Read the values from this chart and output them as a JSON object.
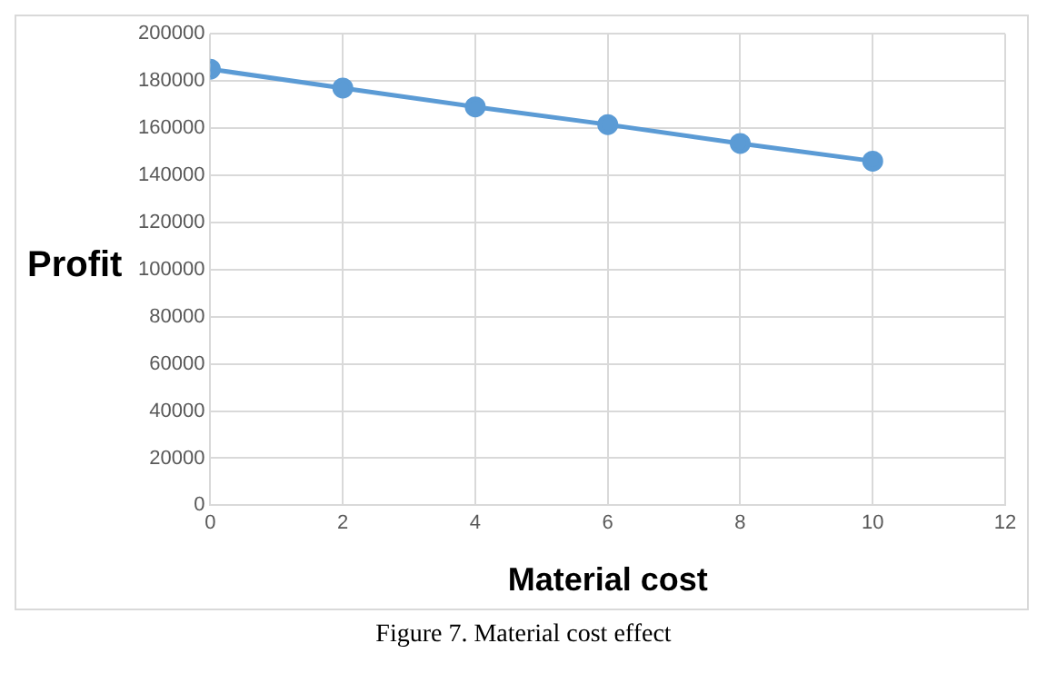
{
  "chart_data": {
    "type": "line",
    "xlabel": "Material cost",
    "ylabel": "Profit",
    "annotations": [
      "Figure 7. Material cost effect"
    ],
    "x": [
      0,
      2,
      4,
      6,
      8,
      10
    ],
    "series": [
      {
        "color": "#5b9bd5",
        "values": [
          185000,
          177000,
          169000,
          161500,
          153500,
          146000
        ]
      }
    ],
    "xlim": [
      0,
      12
    ],
    "xticks": [
      0,
      2,
      4,
      6,
      8,
      10,
      12
    ],
    "ylim": [
      0,
      200000
    ],
    "yticks": [
      0,
      20000,
      40000,
      60000,
      80000,
      100000,
      120000,
      140000,
      160000,
      180000,
      200000
    ],
    "grid": true,
    "legend": false,
    "marker": "circle",
    "line_style": "solid"
  }
}
